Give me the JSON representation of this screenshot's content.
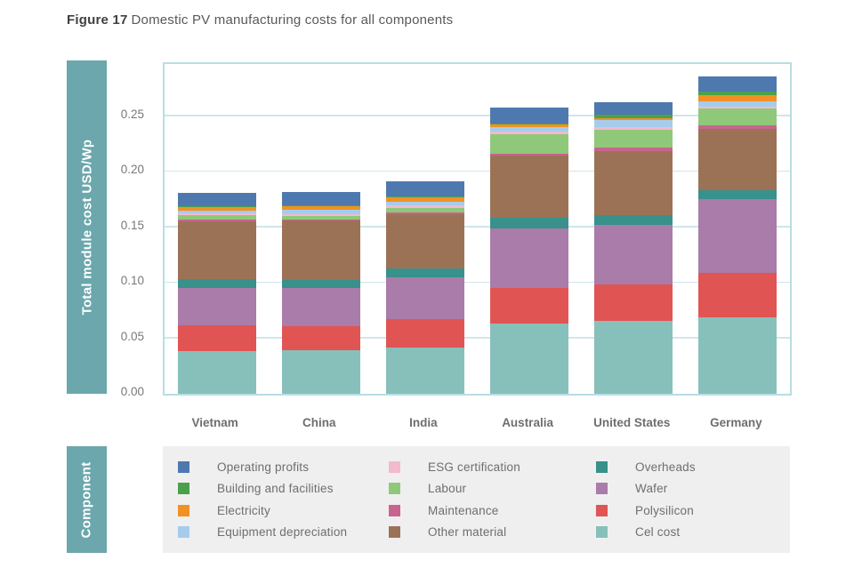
{
  "title": {
    "prefix": "Figure 17",
    "text": "Domestic PV manufacturing costs for all components"
  },
  "y_axis": {
    "label": "Total module cost USD/Wp",
    "tick_labels": [
      "0.00",
      "0.05",
      "0.10",
      "0.15",
      "0.20",
      "0.25"
    ]
  },
  "legend": {
    "band_label": "Component",
    "items_display_order": [
      {
        "label": "Operating profits",
        "color": "#4d79ae"
      },
      {
        "label": "Building and facilities",
        "color": "#4ba049"
      },
      {
        "label": "Electricity",
        "color": "#f19123"
      },
      {
        "label": "Equipment depreciation",
        "color": "#a5cced"
      },
      {
        "label": "ESG certification",
        "color": "#f3bacf"
      },
      {
        "label": "Labour",
        "color": "#90c87a"
      },
      {
        "label": "Maintenance",
        "color": "#c8648f"
      },
      {
        "label": "Other material",
        "color": "#9c7257"
      },
      {
        "label": "Overheads",
        "color": "#38918a"
      },
      {
        "label": "Wafer",
        "color": "#a97ca9"
      },
      {
        "label": "Polysilicon",
        "color": "#e15454"
      },
      {
        "label": "Cel cost",
        "color": "#87c0ba"
      }
    ]
  },
  "chart_data": {
    "type": "bar",
    "stacked": true,
    "title": "Domestic PV manufacturing costs for all components",
    "xlabel": "",
    "ylabel": "Total module cost USD/Wp",
    "ylim": [
      0,
      0.2968
    ],
    "grid_values": [
      0.05,
      0.1,
      0.15,
      0.2,
      0.25
    ],
    "legend_position": "bottom",
    "categories": [
      "Vietnam",
      "China",
      "India",
      "Australia",
      "United States",
      "Germany"
    ],
    "series_bottom_to_top": [
      {
        "name": "Cel cost",
        "color": "#87c0ba",
        "values": [
          0.0385,
          0.0395,
          0.0415,
          0.063,
          0.0653,
          0.0685
        ]
      },
      {
        "name": "Polysilicon",
        "color": "#e15454",
        "values": [
          0.0235,
          0.021,
          0.0255,
          0.0318,
          0.0328,
          0.0403
        ]
      },
      {
        "name": "Wafer",
        "color": "#a97ca9",
        "values": [
          0.0335,
          0.035,
          0.038,
          0.0543,
          0.0543,
          0.0663
        ]
      },
      {
        "name": "Overheads",
        "color": "#38918a",
        "values": [
          0.008,
          0.007,
          0.0075,
          0.0094,
          0.0081,
          0.0081
        ]
      },
      {
        "name": "Other material",
        "color": "#9c7257",
        "values": [
          0.052,
          0.053,
          0.049,
          0.0559,
          0.0581,
          0.0554
        ]
      },
      {
        "name": "Maintenance",
        "color": "#c8648f",
        "values": [
          0.0015,
          0.0015,
          0.002,
          0.0018,
          0.0027,
          0.0027
        ]
      },
      {
        "name": "Labour",
        "color": "#90c87a",
        "values": [
          0.0035,
          0.003,
          0.004,
          0.0175,
          0.0167,
          0.0151
        ]
      },
      {
        "name": "ESG certification",
        "color": "#f3bacf",
        "values": [
          0.0015,
          0.0015,
          0.002,
          0.0021,
          0.0022,
          0.0022
        ]
      },
      {
        "name": "Equipment depreciation",
        "color": "#a5cced",
        "values": [
          0.003,
          0.0035,
          0.0035,
          0.0037,
          0.0059,
          0.0043
        ]
      },
      {
        "name": "Electricity",
        "color": "#f19123",
        "values": [
          0.003,
          0.0035,
          0.0035,
          0.0027,
          0.0022,
          0.0054
        ]
      },
      {
        "name": "Building and facilities",
        "color": "#4ba049",
        "values": [
          0.001,
          0.001,
          0.0012,
          0.001,
          0.0027,
          0.0037
        ]
      },
      {
        "name": "Operating profits",
        "color": "#4d79ae",
        "values": [
          0.0115,
          0.0115,
          0.0135,
          0.0142,
          0.0113,
          0.0135
        ]
      }
    ],
    "totals": [
      0.1805,
      0.181,
      0.1912,
      0.2574,
      0.2623,
      0.2855
    ]
  },
  "style_colors": {
    "axis_band_teal": "#6ba7ac",
    "plot_border": "#b9dde3",
    "gridline": "#cfe6eb",
    "legend_background": "#efeff0",
    "text_gray": "#6d6e71"
  }
}
